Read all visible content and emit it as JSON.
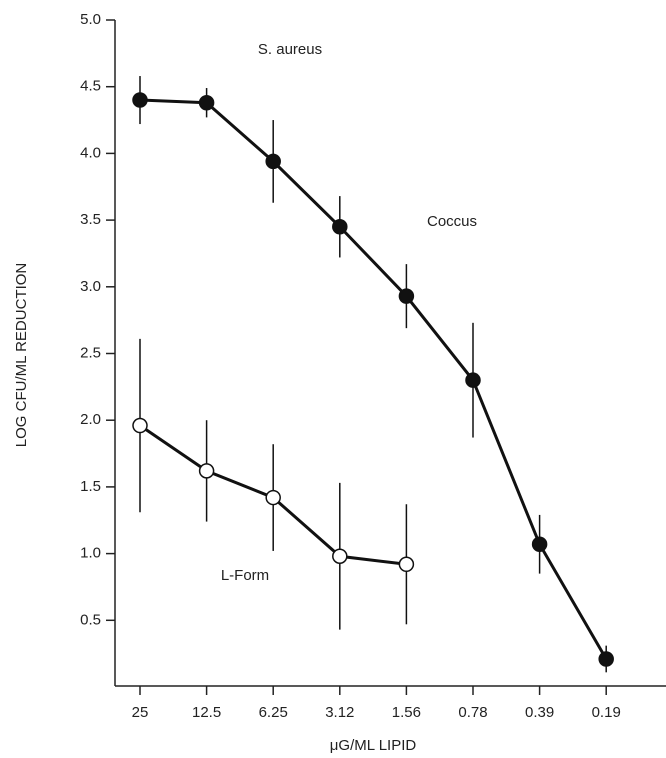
{
  "chart_data": {
    "type": "line",
    "title": "S. aureus",
    "x_label": "μG/ML LIPID",
    "y_label": "LOG CFU/ML REDUCTION",
    "categories": [
      "25",
      "12.5",
      "6.25",
      "3.12",
      "1.56",
      "0.78",
      "0.39",
      "0.19"
    ],
    "series": [
      {
        "name": "Coccus",
        "color": "#111111",
        "marker_fill": "#111111",
        "values": [
          4.4,
          4.38,
          3.94,
          3.45,
          2.93,
          2.3,
          1.07,
          0.21
        ],
        "errors": [
          0.18,
          0.11,
          0.31,
          0.23,
          0.24,
          0.43,
          0.22,
          0.1
        ]
      },
      {
        "name": "L-Form",
        "color": "#111111",
        "marker_fill": "#ffffff",
        "values": [
          1.96,
          1.62,
          1.42,
          0.98,
          0.92,
          null,
          null,
          null
        ],
        "errors": [
          0.65,
          0.38,
          0.4,
          0.55,
          0.45,
          null,
          null,
          null
        ]
      }
    ],
    "ylim": [
      0,
      5
    ],
    "yticks": [
      0.5,
      {
        "value": 1,
        "label": "1.0"
      },
      1.5,
      {
        "value": 2,
        "label": "2.0"
      },
      2.5,
      {
        "value": 3,
        "label": "3.0"
      },
      3.5,
      {
        "value": 4,
        "label": "4.0"
      },
      4.5,
      {
        "value": 5,
        "label": "5.0"
      }
    ],
    "grid": false
  }
}
